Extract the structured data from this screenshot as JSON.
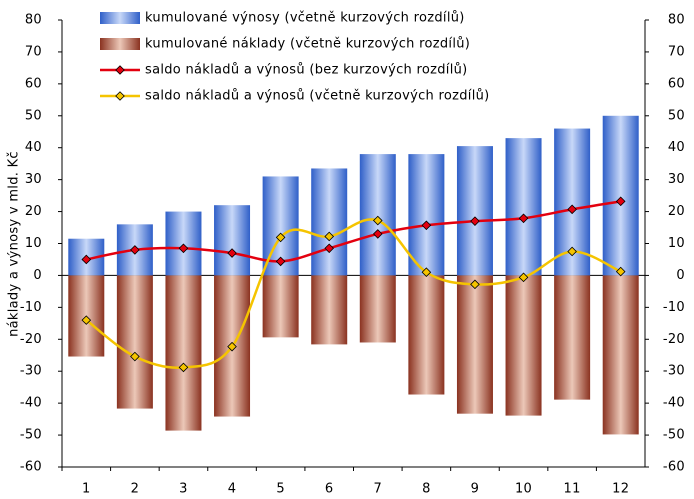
{
  "chart_data": {
    "type": "bar-line",
    "y_label": "náklady a výnosy v mld. Kč",
    "categories": [
      "1",
      "2",
      "3",
      "4",
      "5",
      "6",
      "7",
      "8",
      "9",
      "10",
      "11",
      "12"
    ],
    "series": [
      {
        "name": "kumulované výnosy (včetně kurzových rozdílů)",
        "kind": "bar",
        "color": "#3c6fd6",
        "values": [
          11.5,
          16,
          20,
          22,
          31,
          33.5,
          38,
          38,
          40.5,
          43,
          46,
          50
        ]
      },
      {
        "name": "kumulované náklady (včetně kurzových rozdílů)",
        "kind": "bar",
        "color": "#9c3f2b",
        "values": [
          -25.4,
          -41.7,
          -48.6,
          -44.2,
          -19.4,
          -21.6,
          -21,
          -37.3,
          -43.3,
          -43.9,
          -38.9,
          -49.8
        ]
      },
      {
        "name": "saldo nákladů a výnosů (bez kurzových rozdílů)",
        "kind": "line",
        "color": "#e3000f",
        "values": [
          5,
          8,
          8.5,
          7,
          4.4,
          8.5,
          13,
          15.7,
          17,
          17.9,
          20.7,
          23.2
        ]
      },
      {
        "name": "saldo nákladů a výnosů (včetně kurzových rozdílů)",
        "kind": "line",
        "color": "#f5c400",
        "values": [
          -14,
          -25.4,
          -28.8,
          -22.3,
          11.9,
          12.2,
          17.2,
          1,
          -2.8,
          -0.6,
          7.5,
          1.2
        ]
      }
    ],
    "ylim": [
      -60,
      80
    ],
    "yticks": [
      -60,
      -50,
      -40,
      -30,
      -20,
      -10,
      0,
      10,
      20,
      30,
      40,
      50,
      60,
      70,
      80
    ],
    "y2lim": [
      -60,
      80
    ],
    "y2ticks": [
      -60,
      -50,
      -40,
      -30,
      -20,
      -10,
      0,
      10,
      20,
      30,
      40,
      50,
      60,
      70,
      80
    ]
  }
}
